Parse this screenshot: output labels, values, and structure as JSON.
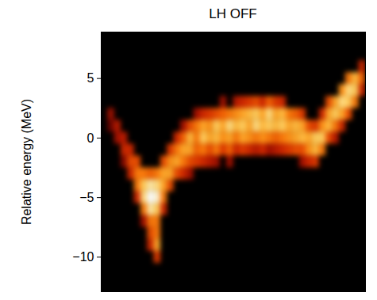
{
  "chart_data": {
    "type": "heatmap",
    "title": "LH OFF",
    "y_label": "Relative energy (MeV)",
    "xlim": [
      0,
      40
    ],
    "ylim": [
      -12.9,
      8.9
    ],
    "yticks": [
      5,
      0,
      -5,
      -10
    ],
    "tick_labels": "y",
    "grid": false,
    "zlim": [
      0,
      1
    ],
    "cells": [
      [
        1,
        2,
        0.3
      ],
      [
        1,
        1,
        0.2
      ],
      [
        2,
        1,
        0.35
      ],
      [
        2,
        0,
        0.3
      ],
      [
        3,
        0,
        0.35
      ],
      [
        3,
        -1,
        0.4
      ],
      [
        3,
        -2,
        0.25
      ],
      [
        4,
        -1,
        0.4
      ],
      [
        4,
        -2,
        0.5
      ],
      [
        4,
        -3,
        0.4
      ],
      [
        5,
        -2,
        0.5
      ],
      [
        5,
        -3,
        0.6
      ],
      [
        5,
        -4,
        0.6
      ],
      [
        5,
        -5,
        0.4
      ],
      [
        6,
        -3,
        0.6
      ],
      [
        6,
        -4,
        0.8
      ],
      [
        6,
        -5,
        0.85
      ],
      [
        6,
        -6,
        0.6
      ],
      [
        6,
        -7,
        0.3
      ],
      [
        7,
        -3,
        0.55
      ],
      [
        7,
        -4,
        0.9
      ],
      [
        7,
        -5,
        1.0
      ],
      [
        7,
        -6,
        0.9
      ],
      [
        7,
        -7,
        0.6
      ],
      [
        7,
        -8,
        0.5
      ],
      [
        7,
        -9,
        0.4
      ],
      [
        8,
        -3,
        0.6
      ],
      [
        8,
        -4,
        0.85
      ],
      [
        8,
        -5,
        0.95
      ],
      [
        8,
        -6,
        0.8
      ],
      [
        8,
        -7,
        0.6
      ],
      [
        8,
        -8,
        0.6
      ],
      [
        8,
        -9,
        0.7
      ],
      [
        8,
        -10,
        0.45
      ],
      [
        9,
        -2,
        0.5
      ],
      [
        9,
        -3,
        0.7
      ],
      [
        9,
        -4,
        0.7
      ],
      [
        9,
        -5,
        0.6
      ],
      [
        9,
        -6,
        0.4
      ],
      [
        10,
        -1,
        0.45
      ],
      [
        10,
        -2,
        0.65
      ],
      [
        10,
        -3,
        0.7
      ],
      [
        10,
        -4,
        0.5
      ],
      [
        11,
        0,
        0.4
      ],
      [
        11,
        -1,
        0.6
      ],
      [
        11,
        -2,
        0.7
      ],
      [
        11,
        -3,
        0.5
      ],
      [
        12,
        1,
        0.3
      ],
      [
        12,
        0,
        0.55
      ],
      [
        12,
        -1,
        0.7
      ],
      [
        12,
        -2,
        0.6
      ],
      [
        12,
        -3,
        0.4
      ],
      [
        13,
        1,
        0.5
      ],
      [
        13,
        0,
        0.75
      ],
      [
        13,
        -1,
        0.7
      ],
      [
        13,
        -2,
        0.5
      ],
      [
        13,
        -3,
        0.3
      ],
      [
        14,
        2,
        0.3
      ],
      [
        14,
        1,
        0.6
      ],
      [
        14,
        0,
        0.6
      ],
      [
        14,
        -1,
        0.55
      ],
      [
        14,
        -2,
        0.45
      ],
      [
        15,
        2,
        0.4
      ],
      [
        15,
        1,
        0.7
      ],
      [
        15,
        0,
        0.8
      ],
      [
        15,
        -1,
        0.6
      ],
      [
        15,
        -2,
        0.4
      ],
      [
        16,
        2,
        0.45
      ],
      [
        16,
        1,
        0.65
      ],
      [
        16,
        0,
        0.7
      ],
      [
        16,
        -1,
        0.5
      ],
      [
        16,
        -2,
        0.35
      ],
      [
        17,
        2,
        0.5
      ],
      [
        17,
        1,
        0.8
      ],
      [
        17,
        0,
        0.75
      ],
      [
        17,
        -1,
        0.6
      ],
      [
        17,
        -2,
        0.3
      ],
      [
        18,
        3,
        0.3
      ],
      [
        18,
        2,
        0.55
      ],
      [
        18,
        1,
        0.7
      ],
      [
        18,
        0,
        0.65
      ],
      [
        18,
        -1,
        0.45
      ],
      [
        19,
        2,
        0.6
      ],
      [
        19,
        1,
        0.85
      ],
      [
        19,
        0,
        0.7
      ],
      [
        19,
        -1,
        0.55
      ],
      [
        19,
        -2,
        0.3
      ],
      [
        20,
        3,
        0.35
      ],
      [
        20,
        2,
        0.65
      ],
      [
        20,
        1,
        0.75
      ],
      [
        20,
        0,
        0.6
      ],
      [
        20,
        -1,
        0.4
      ],
      [
        21,
        3,
        0.4
      ],
      [
        21,
        2,
        0.7
      ],
      [
        21,
        1,
        0.8
      ],
      [
        21,
        0,
        0.7
      ],
      [
        21,
        -1,
        0.45
      ],
      [
        22,
        3,
        0.45
      ],
      [
        22,
        2,
        0.75
      ],
      [
        22,
        1,
        0.7
      ],
      [
        22,
        0,
        0.65
      ],
      [
        22,
        -1,
        0.4
      ],
      [
        23,
        3,
        0.5
      ],
      [
        23,
        2,
        0.8
      ],
      [
        23,
        1,
        0.85
      ],
      [
        23,
        0,
        0.6
      ],
      [
        23,
        -1,
        0.35
      ],
      [
        24,
        3,
        0.4
      ],
      [
        24,
        2,
        0.7
      ],
      [
        24,
        1,
        0.75
      ],
      [
        24,
        0,
        0.65
      ],
      [
        24,
        -1,
        0.4
      ],
      [
        25,
        3,
        0.55
      ],
      [
        25,
        2,
        0.85
      ],
      [
        25,
        1,
        0.8
      ],
      [
        25,
        0,
        0.6
      ],
      [
        25,
        -1,
        0.3
      ],
      [
        26,
        3,
        0.45
      ],
      [
        26,
        2,
        0.7
      ],
      [
        26,
        1,
        0.75
      ],
      [
        26,
        0,
        0.55
      ],
      [
        26,
        -1,
        0.35
      ],
      [
        27,
        3,
        0.4
      ],
      [
        27,
        2,
        0.75
      ],
      [
        27,
        1,
        0.8
      ],
      [
        27,
        0,
        0.6
      ],
      [
        27,
        -1,
        0.4
      ],
      [
        28,
        2,
        0.6
      ],
      [
        28,
        1,
        0.7
      ],
      [
        28,
        0,
        0.65
      ],
      [
        28,
        -1,
        0.45
      ],
      [
        29,
        2,
        0.55
      ],
      [
        29,
        1,
        0.75
      ],
      [
        29,
        0,
        0.7
      ],
      [
        29,
        -1,
        0.5
      ],
      [
        30,
        2,
        0.45
      ],
      [
        30,
        1,
        0.7
      ],
      [
        30,
        0,
        0.75
      ],
      [
        30,
        -1,
        0.5
      ],
      [
        30,
        -2,
        0.3
      ],
      [
        31,
        1,
        0.5
      ],
      [
        31,
        0,
        0.7
      ],
      [
        31,
        -1,
        0.65
      ],
      [
        31,
        -2,
        0.4
      ],
      [
        32,
        1,
        0.45
      ],
      [
        32,
        0,
        0.8
      ],
      [
        32,
        -1,
        0.75
      ],
      [
        32,
        -2,
        0.45
      ],
      [
        33,
        2,
        0.4
      ],
      [
        33,
        1,
        0.65
      ],
      [
        33,
        0,
        0.8
      ],
      [
        33,
        -1,
        0.6
      ],
      [
        34,
        3,
        0.5
      ],
      [
        34,
        2,
        0.7
      ],
      [
        34,
        1,
        0.75
      ],
      [
        34,
        0,
        0.5
      ],
      [
        35,
        3,
        0.7
      ],
      [
        35,
        2,
        0.8
      ],
      [
        35,
        1,
        0.6
      ],
      [
        35,
        0,
        0.35
      ],
      [
        36,
        4,
        0.65
      ],
      [
        36,
        3,
        0.85
      ],
      [
        36,
        2,
        0.7
      ],
      [
        36,
        1,
        0.4
      ],
      [
        37,
        5,
        0.6
      ],
      [
        37,
        4,
        0.85
      ],
      [
        37,
        3,
        0.8
      ],
      [
        37,
        2,
        0.5
      ],
      [
        38,
        5,
        0.75
      ],
      [
        38,
        4,
        0.8
      ],
      [
        38,
        3,
        0.6
      ],
      [
        39,
        6,
        0.4
      ],
      [
        39,
        5,
        0.55
      ],
      [
        39,
        4,
        0.4
      ]
    ]
  }
}
